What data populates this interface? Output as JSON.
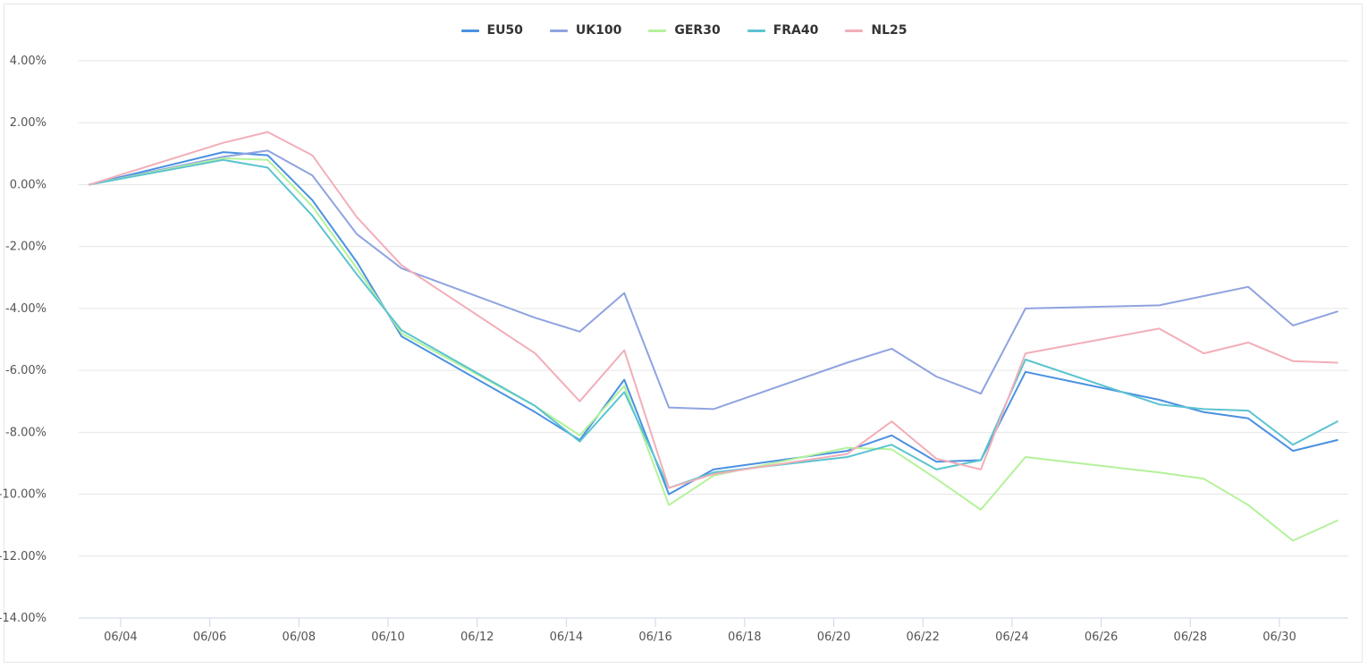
{
  "chart_data": {
    "type": "line",
    "ylim": [
      -14,
      4
    ],
    "y_ticks": [
      "4.00%",
      "2.00%",
      "0.00%",
      "-2.00%",
      "-4.00%",
      "-6.00%",
      "-8.00%",
      "-10.00%",
      "-12.00%",
      "-14.00%"
    ],
    "y_tick_values": [
      4,
      2,
      0,
      -2,
      -4,
      -6,
      -8,
      -10,
      -12,
      -14
    ],
    "x_ticks": [
      "06/04",
      "06/06",
      "06/08",
      "06/10",
      "06/12",
      "06/14",
      "06/16",
      "06/18",
      "06/20",
      "06/22",
      "06/24",
      "06/26",
      "06/28",
      "06/30"
    ],
    "x_tick_days": [
      4,
      6,
      8,
      10,
      12,
      14,
      16,
      18,
      20,
      22,
      24,
      26,
      28,
      30
    ],
    "x_days": [
      3.3,
      6.3,
      7.3,
      8.3,
      9.3,
      10.3,
      13.3,
      14.3,
      15.3,
      16.3,
      17.3,
      20.3,
      21.3,
      22.3,
      23.3,
      24.3,
      27.3,
      28.3,
      29.3,
      30.3,
      31.3
    ],
    "legend_position": "top-center",
    "grid": true,
    "series": [
      {
        "name": "EU50",
        "color": "#4a90e2",
        "values": [
          0.0,
          1.05,
          0.95,
          -0.5,
          -2.5,
          -4.9,
          -7.35,
          -8.25,
          -6.3,
          -10.0,
          -9.2,
          -8.6,
          -8.1,
          -8.95,
          -8.9,
          -6.05,
          -6.95,
          -7.35,
          -7.55,
          -8.6,
          -8.25
        ]
      },
      {
        "name": "UK100",
        "color": "#8fa3e0",
        "values": [
          0.0,
          0.9,
          1.1,
          0.3,
          -1.6,
          -2.7,
          -4.3,
          -4.75,
          -3.5,
          -7.2,
          -7.25,
          -5.75,
          -5.3,
          -6.2,
          -6.75,
          -4.0,
          -3.9,
          -3.6,
          -3.3,
          -4.55,
          -4.1
        ]
      },
      {
        "name": "GER30",
        "color": "#b4f29a",
        "values": [
          0.0,
          0.85,
          0.8,
          -0.7,
          -2.7,
          -4.8,
          -7.15,
          -8.1,
          -6.5,
          -10.35,
          -9.4,
          -8.5,
          -8.55,
          -9.5,
          -10.5,
          -8.8,
          -9.3,
          -9.5,
          -10.35,
          -11.5,
          -10.85
        ]
      },
      {
        "name": "FRA40",
        "color": "#5bc4cf",
        "values": [
          0.0,
          0.8,
          0.55,
          -1.0,
          -2.9,
          -4.7,
          -7.15,
          -8.3,
          -6.7,
          -9.8,
          -9.3,
          -8.8,
          -8.4,
          -9.2,
          -8.9,
          -5.65,
          -7.1,
          -7.25,
          -7.3,
          -8.4,
          -7.65
        ]
      },
      {
        "name": "NL25",
        "color": "#f2aeb8",
        "values": [
          0.0,
          1.35,
          1.7,
          0.95,
          -1.05,
          -2.6,
          -5.45,
          -7.0,
          -5.35,
          -9.8,
          -9.35,
          -8.7,
          -7.65,
          -8.85,
          -9.2,
          -5.45,
          -4.65,
          -5.45,
          -5.1,
          -5.7,
          -5.75
        ]
      }
    ]
  }
}
